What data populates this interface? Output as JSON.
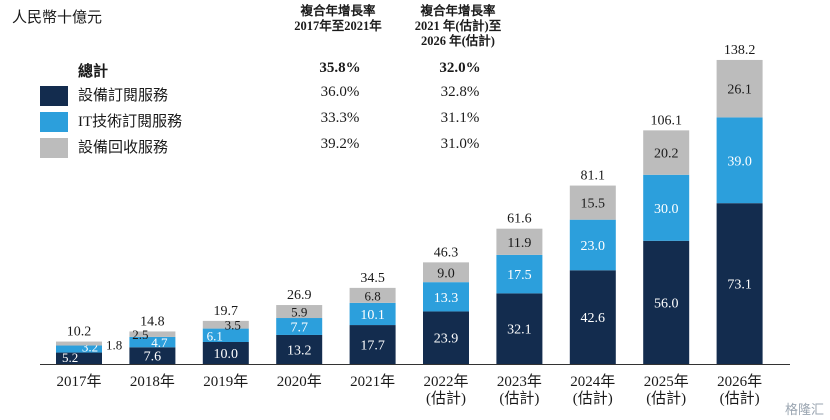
{
  "unit_label": "人民幣十億元",
  "cagr_headers": [
    "複合年增長率\n2017年至2021年",
    "複合年增長率\n2021 年(估計)至\n2026 年(估計)"
  ],
  "legend": [
    {
      "label": "總計",
      "cagr_1": "35.8%",
      "cagr_2": "32.0%",
      "color": null
    },
    {
      "label": "設備訂閱服務",
      "cagr_1": "36.0%",
      "cagr_2": "32.8%",
      "color": "#132c4e"
    },
    {
      "label": "IT技術訂閱服務",
      "cagr_1": "33.3%",
      "cagr_2": "31.1%",
      "color": "#2c9fdc"
    },
    {
      "label": "設備回收服務",
      "cagr_1": "39.2%",
      "cagr_2": "31.0%",
      "color": "#bcbcbc"
    }
  ],
  "watermark": "格隆汇",
  "chart_data": {
    "type": "bar",
    "stacked": true,
    "categories": [
      "2017年",
      "2018年",
      "2019年",
      "2020年",
      "2021年",
      "2022年\n(估計)",
      "2023年\n(估計)",
      "2024年\n(估計)",
      "2025年\n(估計)",
      "2026年\n(估計)"
    ],
    "series": [
      {
        "name": "設備訂閱服務",
        "values": [
          5.2,
          7.6,
          10.0,
          13.2,
          17.7,
          23.9,
          32.1,
          42.6,
          56.0,
          73.1
        ]
      },
      {
        "name": "IT技術訂閱服務",
        "values": [
          3.2,
          4.7,
          6.1,
          7.7,
          10.1,
          13.3,
          17.5,
          23.0,
          30.0,
          39.0
        ]
      },
      {
        "name": "設備回收服務",
        "values": [
          1.8,
          2.5,
          3.5,
          5.9,
          6.8,
          9.0,
          11.9,
          15.5,
          20.2,
          26.1
        ]
      }
    ],
    "totals": [
      10.2,
      14.8,
      19.7,
      26.9,
      34.5,
      46.3,
      61.6,
      81.1,
      106.1,
      138.2
    ],
    "ylim": [
      0,
      140
    ],
    "colors": [
      "#132c4e",
      "#2c9fdc",
      "#bcbcbc"
    ]
  }
}
